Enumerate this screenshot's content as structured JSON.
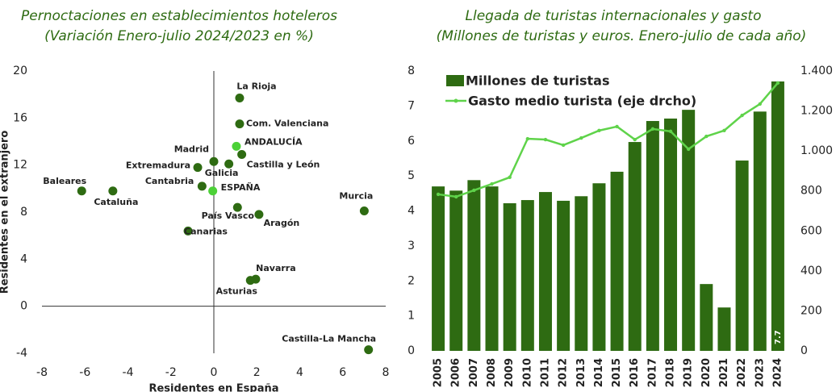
{
  "chart_data": [
    {
      "type": "scatter",
      "title": [
        "Pernoctaciones en establecimientos hoteleros",
        "(Variación Enero-julio 2024/2023 en %)"
      ],
      "xlabel": "Residentes en España",
      "ylabel": "Residentes en el extranjero",
      "labels": [
        "La Rioja",
        "Com. Valenciana",
        "ANDALUCÍA",
        "Madrid",
        "Galicia",
        "Castilla y León",
        "Extremadura",
        "Cantabria",
        "ESPAÑA",
        "Baleares",
        "Cataluña",
        "Murcia",
        "País Vasco",
        "Aragón",
        "Canarias",
        "Navarra",
        "Asturias",
        "Castilla-La Mancha"
      ],
      "x": [
        1.2,
        1.2,
        1.05,
        0,
        0.7,
        1.3,
        -0.75,
        -0.55,
        -0.05,
        -6.15,
        -4.7,
        7.0,
        1.1,
        2.1,
        -1.2,
        1.95,
        1.7,
        7.2
      ],
      "y": [
        17.7,
        15.5,
        13.6,
        12.3,
        12.1,
        12.9,
        11.8,
        10.2,
        9.8,
        9.8,
        9.8,
        8.1,
        8.4,
        7.8,
        6.4,
        2.3,
        2.2,
        -3.7
      ],
      "colors": [
        "#2e6b12",
        "#2e6b12",
        "#4cd137",
        "#2e6b12",
        "#2e6b12",
        "#2e6b12",
        "#2e6b12",
        "#2e6b12",
        "#4cd137",
        "#2e6b12",
        "#2e6b12",
        "#2e6b12",
        "#2e6b12",
        "#2e6b12",
        "#2e6b12",
        "#2e6b12",
        "#2e6b12",
        "#2e6b12"
      ],
      "xlim": [
        -8,
        8
      ],
      "xticks": [
        -8,
        -6,
        -4,
        -2,
        0,
        2,
        4,
        6,
        8
      ],
      "ylim": [
        -4,
        20
      ],
      "yticks": [
        -4,
        0,
        4,
        8,
        12,
        16,
        20
      ]
    },
    {
      "type": "bar-line",
      "title": [
        "Llegada de turistas internacionales y gasto",
        "(Millones de turistas y euros. Enero-julio  de cada año)"
      ],
      "categories": [
        "2005",
        "2006",
        "2007",
        "2008",
        "2009",
        "2010",
        "2011",
        "2012",
        "2013",
        "2014",
        "2015",
        "2016",
        "2017",
        "2018",
        "2019",
        "2020",
        "2021",
        "2022",
        "2023",
        "2024"
      ],
      "series": [
        {
          "name": "Millones de turistas",
          "color": "#2e6b12",
          "values": [
            4.7,
            4.58,
            4.88,
            4.7,
            4.22,
            4.31,
            4.54,
            4.29,
            4.42,
            4.79,
            5.12,
            5.97,
            6.57,
            6.64,
            6.89,
            1.91,
            1.24,
            5.44,
            6.84,
            7.7
          ]
        },
        {
          "name": "Gasto medio turista (eje drcho)",
          "color": "#5fd34a",
          "axis": "y2",
          "values": [
            783,
            771,
            803,
            835,
            868,
            1061,
            1057,
            1029,
            1065,
            1102,
            1122,
            1057,
            1110,
            1098,
            1009,
            1073,
            1102,
            1178,
            1235,
            1340
          ]
        }
      ],
      "ylim": [
        0,
        8
      ],
      "yticks": [
        0,
        1,
        2,
        3,
        4,
        5,
        6,
        7,
        8
      ],
      "y2lim": [
        0,
        1400
      ],
      "y2ticks": [
        0,
        200,
        400,
        600,
        800,
        {
          "value": 1000,
          "label": "1.000"
        },
        {
          "value": 1200,
          "label": "1.200"
        },
        {
          "value": 1400,
          "label": "1.400"
        }
      ]
    }
  ]
}
